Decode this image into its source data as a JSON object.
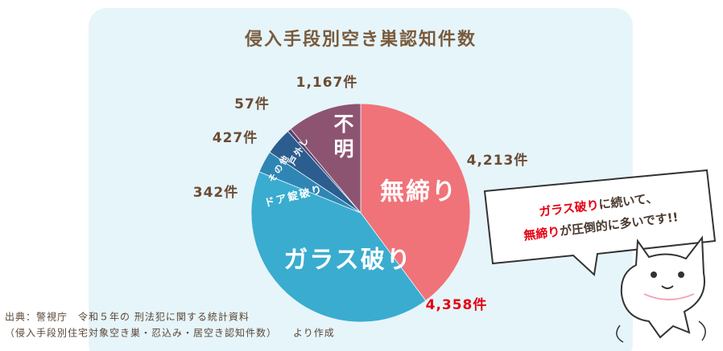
{
  "chart_data": {
    "type": "pie",
    "title": "侵入手段別空き巣認知件数",
    "categories": [
      "無締り",
      "ガラス破り",
      "ドア錠破り",
      "その他",
      "戸外し",
      "不明"
    ],
    "values": [
      4213,
      4358,
      342,
      427,
      57,
      1167
    ],
    "value_labels": [
      "4,213件",
      "4,358件",
      "342件",
      "427件",
      "57件",
      "1,167件"
    ],
    "colors": [
      "#f07379",
      "#3aacd0",
      "#2f86b4",
      "#2c5d8f",
      "#5a3f6e",
      "#8d5471"
    ]
  },
  "speech_bubble": {
    "line1_red": "ガラス破り",
    "line1_rest": "に続いて、",
    "line2_red": "無締り",
    "line2_rest": "が圧倒的に多いです!!"
  },
  "source": {
    "line1": "出典：警視庁　令和５年の 刑法犯に関する統計資料",
    "line2": "（侵入手段別住宅対象空き巣・忍込み・居空き認知件数）　　より作成"
  }
}
